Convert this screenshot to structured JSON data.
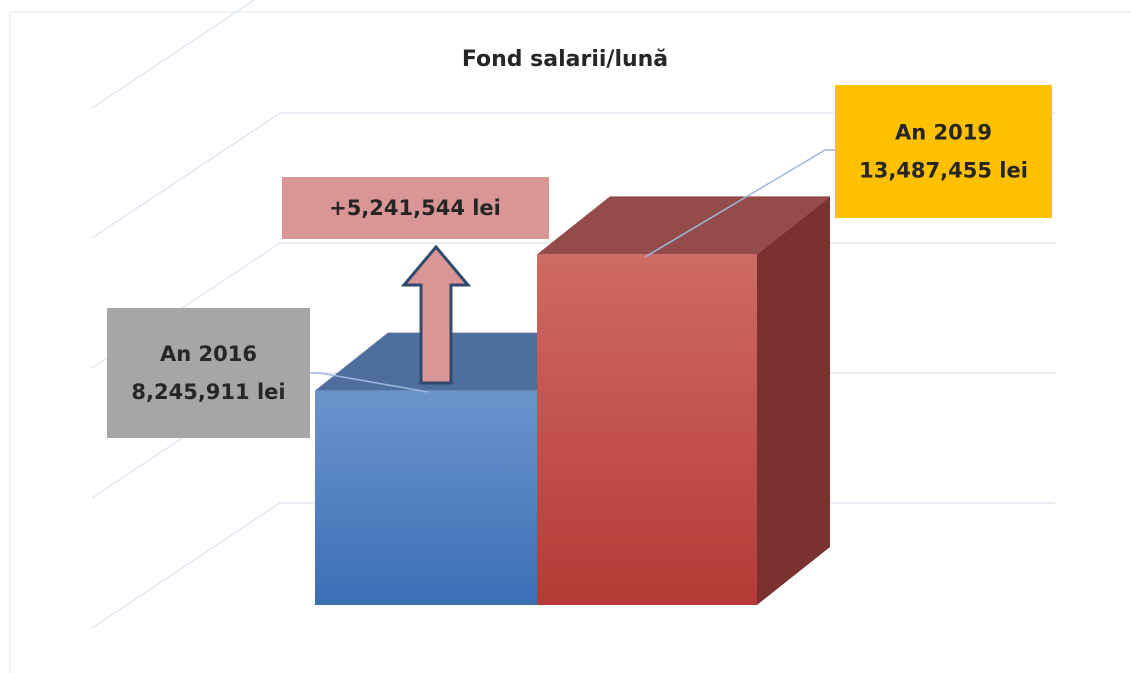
{
  "chart_data": {
    "type": "bar3d",
    "title": "Fond salarii/lună",
    "categories": [
      "An 2016",
      "An 2019"
    ],
    "values": [
      8245911,
      13487455
    ],
    "value_labels": [
      "8,245,911 lei",
      "13,487,455 lei"
    ],
    "colors": [
      "#4f81bd",
      "#c0504d"
    ],
    "annotation": "+5,241,544 lei",
    "ylim": [
      0,
      20000000
    ],
    "yticks": [
      0,
      5000000,
      10000000,
      15000000,
      20000000
    ],
    "grid": true
  }
}
